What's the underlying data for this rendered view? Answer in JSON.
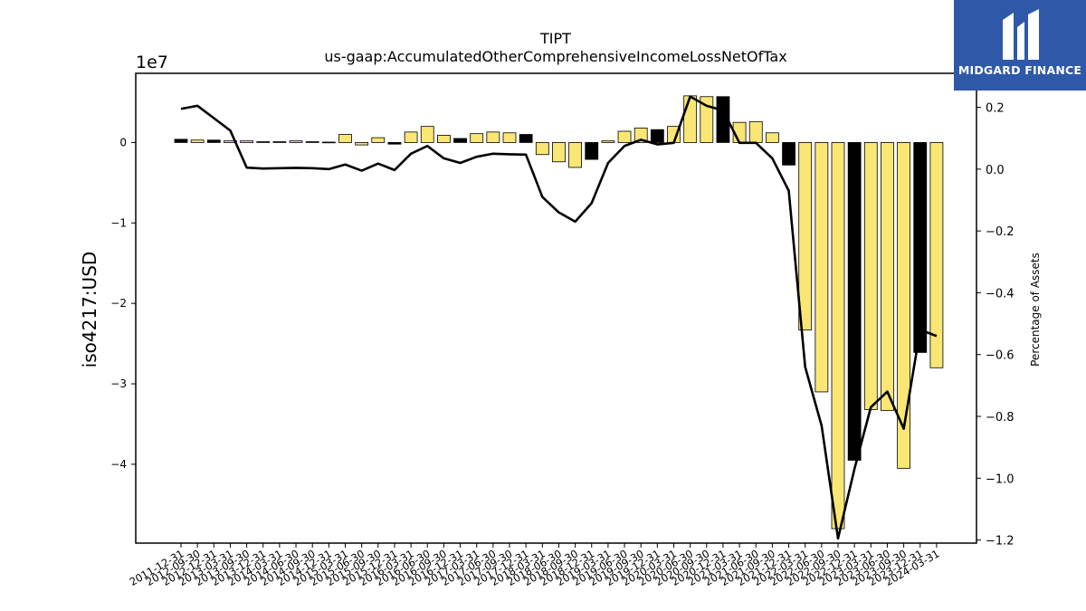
{
  "chart_data": {
    "type": "bar",
    "title": "TIPT",
    "subtitle": "us-gaap:AccumulatedOtherComprehensiveIncomeLossNetOfTax",
    "ylabel": "iso4217:USD",
    "y2label": "Percentage of Assets",
    "y_offset_label": "1e7",
    "ylim": [
      -49800000.0,
      8600000.0
    ],
    "y2lim": [
      -1.21,
      0.31
    ],
    "y_ticks": [
      -4,
      -3,
      -2,
      -1,
      0
    ],
    "y_tick_labels": [
      "−4",
      "−3",
      "−2",
      "−1",
      "0"
    ],
    "y2_ticks": [
      -1.2,
      -1.0,
      -0.8,
      -0.6,
      -0.4,
      -0.2,
      0.0,
      0.2
    ],
    "y2_tick_labels": [
      "−1.2",
      "−1.0",
      "−0.8",
      "−0.6",
      "−0.4",
      "−0.2",
      "0.0",
      "0.2"
    ],
    "x_tick_labels": [
      "2011-12-31",
      "2012-09-30",
      "2012-12-31",
      "2013-03-31",
      "2013-09-30",
      "2013-12-31",
      "2014-03-31",
      "2014-06-30",
      "2014-09-30",
      "2014-12-31",
      "2015-03-31",
      "2015-06-30",
      "2015-09-30",
      "2015-12-31",
      "2016-03-31",
      "2016-06-30",
      "2016-09-30",
      "2016-12-31",
      "2017-03-31",
      "2017-06-30",
      "2017-09-30",
      "2017-12-31",
      "2018-03-31",
      "2018-06-30",
      "2018-09-30",
      "2018-12-31",
      "2019-03-31",
      "2019-06-30",
      "2019-09-30",
      "2019-12-31",
      "2020-03-31",
      "2020-06-30",
      "2020-09-30",
      "2020-12-31",
      "2021-03-31",
      "2021-06-30",
      "2021-09-30",
      "2021-12-31",
      "2022-03-31",
      "2022-06-30",
      "2022-09-30",
      "2022-12-31",
      "2023-03-31",
      "2023-06-30",
      "2023-09-30",
      "2023-12-31",
      "2024-03-31"
    ],
    "series": [
      {
        "name": "",
        "values": [
          400000,
          300000,
          300000,
          200000,
          200000,
          100000,
          100000,
          200000,
          100000,
          50000,
          1000000,
          -300000,
          600000,
          -200000,
          1300000,
          2000000,
          900000,
          500000,
          1100000,
          1300000,
          1200000,
          1000000,
          -1500000,
          -2400000,
          -3100000,
          -2100000,
          200000,
          1400000,
          1800000,
          1600000,
          2000000,
          5800000,
          5700000,
          5700000,
          2500000,
          2600000,
          1200000,
          -2800000,
          -23300000,
          -31000000,
          -48000000,
          -39500000,
          -33200000,
          -33300000,
          -40500000,
          -26100000,
          -28000000
        ],
        "highlight": [
          true,
          false,
          true,
          false,
          false,
          true,
          true,
          false,
          true,
          false,
          false,
          false,
          false,
          true,
          false,
          false,
          false,
          true,
          false,
          false,
          false,
          true,
          false,
          false,
          false,
          true,
          false,
          false,
          false,
          true,
          false,
          false,
          false,
          true,
          false,
          false,
          false,
          true,
          false,
          false,
          false,
          true,
          false,
          false,
          false,
          true,
          false
        ],
        "highlight_color": "#000000",
        "color": "#f9e675"
      },
      {
        "name": "",
        "type": "line",
        "axis": "right",
        "color": "#000000",
        "values": [
          0.195,
          0.205,
          0.165,
          0.125,
          0.005,
          0.002,
          0.003,
          0.004,
          0.003,
          0.0,
          0.015,
          -0.005,
          0.018,
          -0.003,
          0.05,
          0.075,
          0.035,
          0.02,
          0.04,
          0.05,
          0.048,
          0.047,
          -0.09,
          -0.14,
          -0.17,
          -0.11,
          0.02,
          0.075,
          0.095,
          0.08,
          0.085,
          0.235,
          0.205,
          0.19,
          0.085,
          0.085,
          0.035,
          -0.07,
          -0.64,
          -0.83,
          -1.195,
          -0.97,
          -0.77,
          -0.72,
          -0.84,
          -0.52,
          -0.54
        ]
      }
    ],
    "grid": false,
    "legend": "none"
  },
  "logo": {
    "text": "MIDGARD FINANCE",
    "bg_color": "#2f58a8"
  }
}
